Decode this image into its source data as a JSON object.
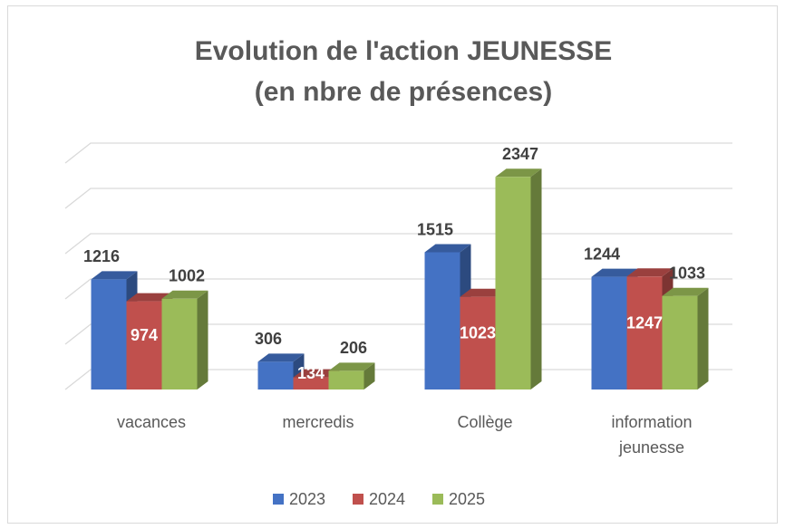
{
  "chart_data": {
    "type": "bar3d",
    "title": "Evolution de l'action JEUNESSE",
    "subtitle": "(en nbre de présences)",
    "categories": [
      "vacances",
      "mercredis",
      "Collège",
      "information jeunesse"
    ],
    "series": [
      {
        "name": "2023",
        "color": "#4472c4",
        "values": [
          1216,
          306,
          1515,
          1244
        ]
      },
      {
        "name": "2024",
        "color": "#c0504d",
        "values": [
          974,
          134,
          1023,
          1247
        ]
      },
      {
        "name": "2025",
        "color": "#9bbb59",
        "values": [
          1002,
          206,
          2347,
          1033
        ]
      }
    ],
    "ylim": [
      0,
      2500
    ],
    "yticks": [
      0,
      500,
      1000,
      1500,
      2000,
      2500
    ],
    "grid": true,
    "legend": "bottom"
  }
}
